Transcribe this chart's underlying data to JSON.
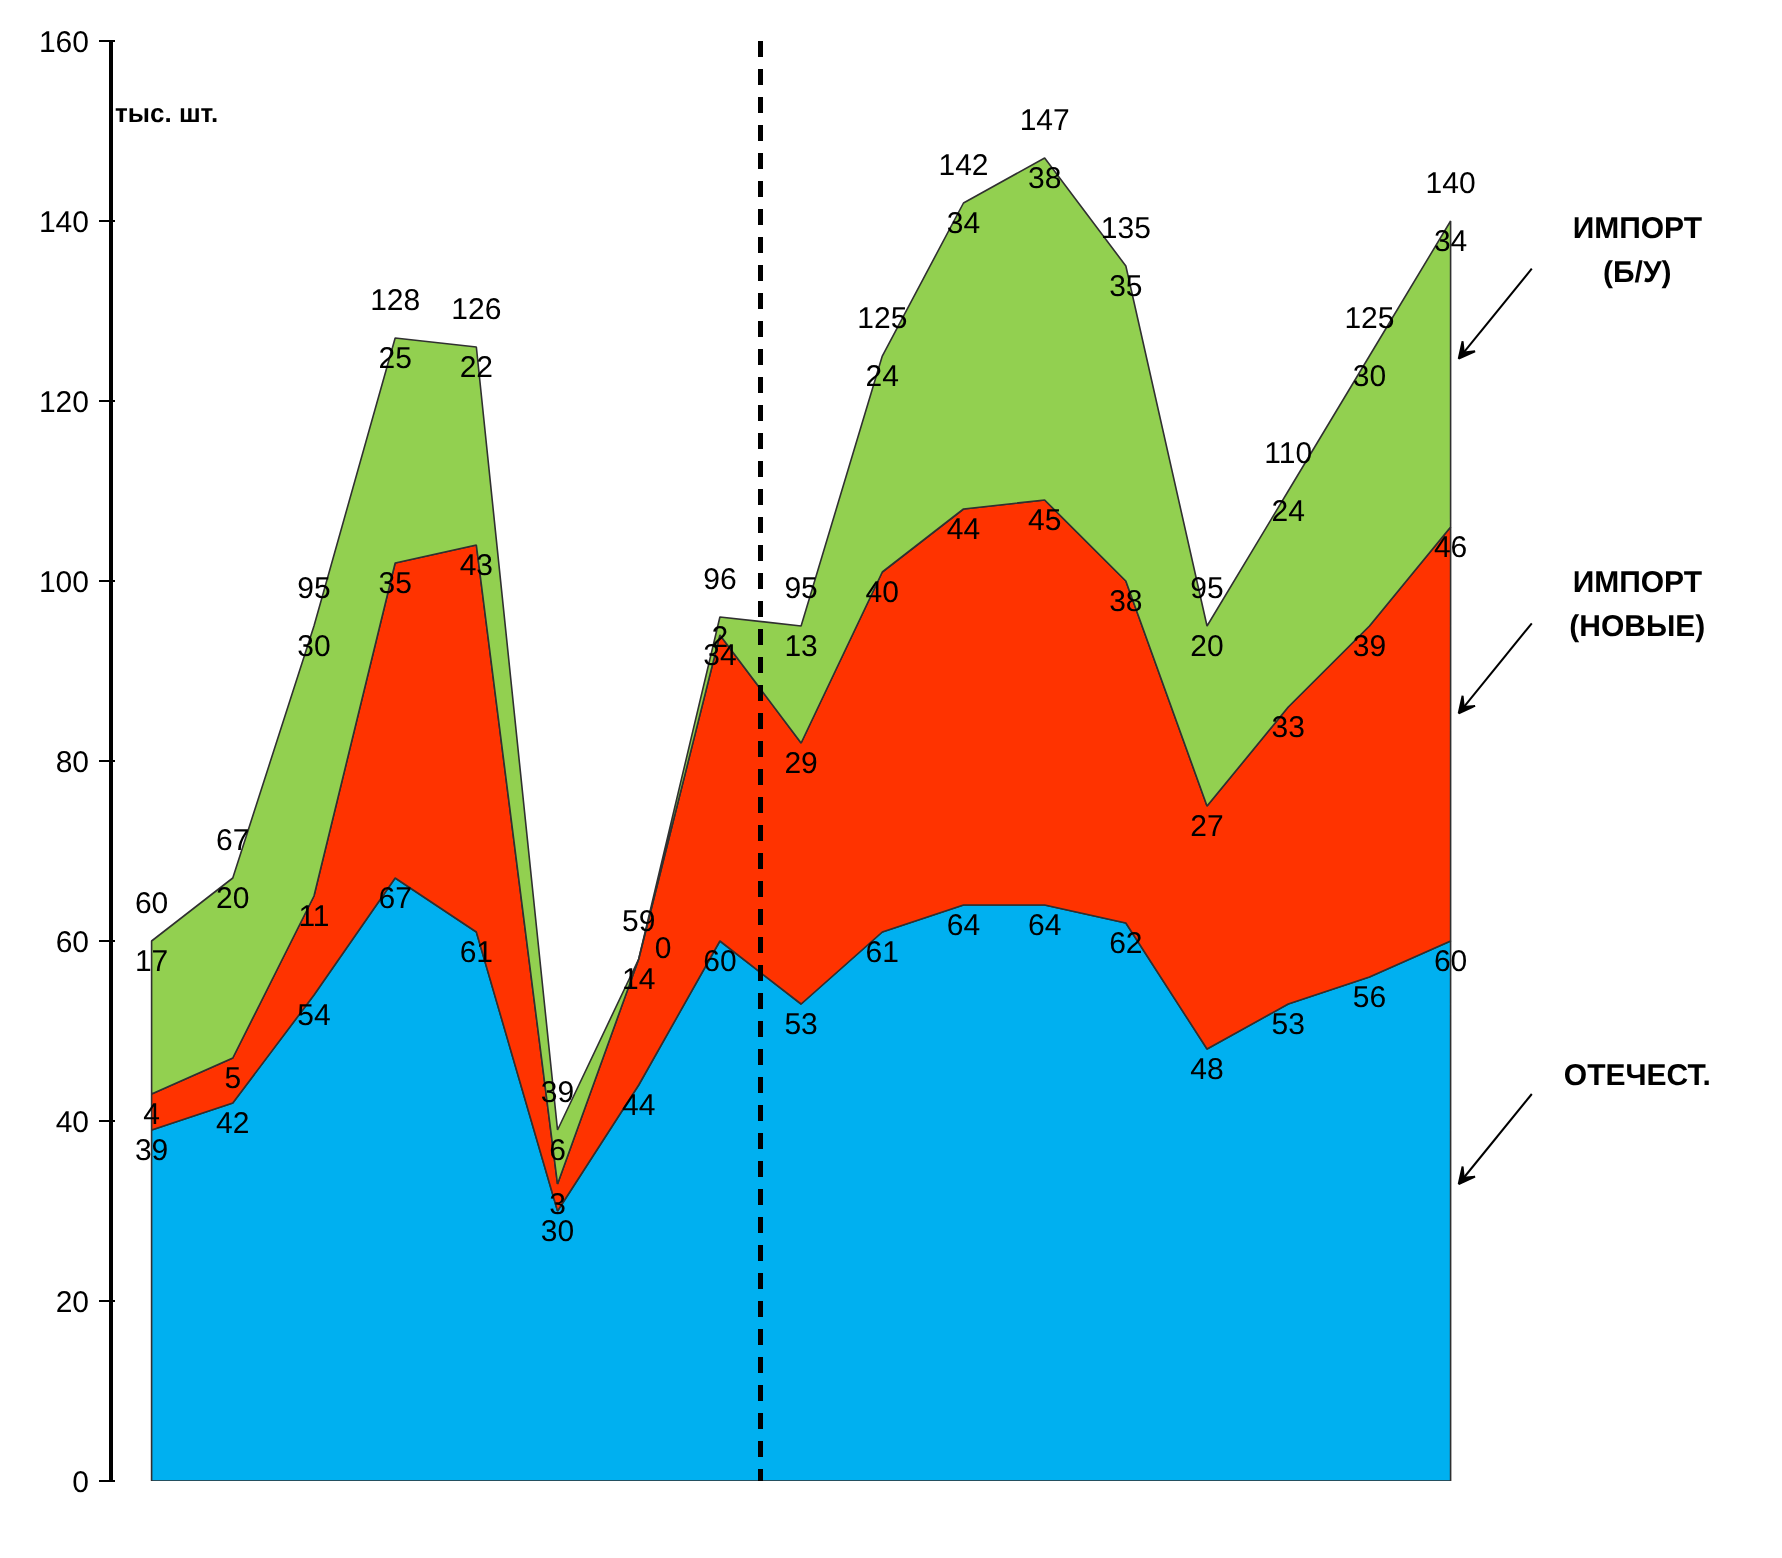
{
  "chart_data": {
    "type": "area",
    "stacked": true,
    "ylabel": "тыс. шт.",
    "categories": [
      null,
      null,
      null,
      null,
      null,
      null,
      null,
      null,
      null,
      null,
      null,
      null,
      null,
      null,
      null,
      null,
      null
    ],
    "series": [
      {
        "name": "ОТЕЧЕСТ.",
        "color": "#00b0f0",
        "values": [
          39,
          42,
          54,
          67,
          61,
          30,
          44,
          60,
          53,
          61,
          64,
          64,
          62,
          48,
          53,
          56,
          60
        ]
      },
      {
        "name": "ИМПОРТ (НОВЫЕ)",
        "color": "#ff3300",
        "values": [
          4,
          5,
          11,
          35,
          43,
          3,
          14,
          34,
          29,
          40,
          44,
          45,
          38,
          27,
          33,
          39,
          46
        ]
      },
      {
        "name": "ИМПОРТ (Б/У)",
        "color": "#92d050",
        "values": [
          17,
          20,
          30,
          25,
          22,
          6,
          0,
          2,
          13,
          24,
          34,
          38,
          35,
          20,
          24,
          30,
          34
        ]
      }
    ],
    "totals": [
      "60",
      "67",
      "95",
      "128",
      "126",
      "39",
      "59",
      "96",
      "95",
      "125",
      "142",
      "147",
      "135",
      "95",
      "110",
      "125",
      "140"
    ],
    "data_labels": true,
    "ylim": [
      0,
      160
    ],
    "yticks": [
      0,
      20,
      40,
      60,
      80,
      100,
      120,
      140,
      160
    ],
    "grid": false,
    "legend": "right",
    "tick_labels": "y"
  }
}
